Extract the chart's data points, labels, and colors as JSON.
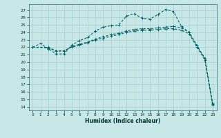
{
  "xlabel": "Humidex (Indice chaleur)",
  "bg_color": "#c8e8e8",
  "grid_color": "#a8cccc",
  "line_color": "#006666",
  "x_ticks": [
    0,
    1,
    2,
    3,
    4,
    5,
    6,
    7,
    8,
    9,
    10,
    11,
    12,
    13,
    14,
    15,
    16,
    17,
    18,
    19,
    20,
    21,
    22,
    23
  ],
  "xlim": [
    -0.5,
    23.5
  ],
  "ylim": [
    13.5,
    27.8
  ],
  "y_ticks": [
    14,
    15,
    16,
    17,
    18,
    19,
    20,
    21,
    22,
    23,
    24,
    25,
    26,
    27
  ],
  "line1_x": [
    0,
    1,
    2,
    3,
    4,
    5,
    6,
    7,
    8,
    9,
    10,
    11,
    12,
    13,
    14,
    15,
    16,
    17,
    18,
    19,
    20,
    21,
    22,
    23
  ],
  "line1_y": [
    22.0,
    22.5,
    21.8,
    21.1,
    21.1,
    22.3,
    22.9,
    23.3,
    24.2,
    24.7,
    24.9,
    25.0,
    26.2,
    26.5,
    25.9,
    25.8,
    26.4,
    27.1,
    26.8,
    24.8,
    24.0,
    22.2,
    20.5,
    14.3
  ],
  "line2_x": [
    0,
    2,
    3,
    4,
    5,
    6,
    7,
    8,
    9,
    10,
    11,
    12,
    13,
    14,
    15,
    16,
    17,
    18,
    19,
    20,
    21,
    22,
    23
  ],
  "line2_y": [
    22.0,
    22.0,
    21.5,
    21.5,
    22.1,
    22.4,
    22.7,
    23.1,
    23.4,
    23.7,
    23.9,
    24.2,
    24.4,
    24.5,
    24.5,
    24.6,
    24.7,
    24.8,
    24.6,
    24.0,
    22.2,
    20.5,
    14.4
  ],
  "line3_x": [
    0,
    2,
    3,
    4,
    5,
    6,
    7,
    8,
    9,
    10,
    11,
    12,
    13,
    14,
    15,
    16,
    17,
    18,
    19,
    20,
    21,
    22,
    23
  ],
  "line3_y": [
    22.0,
    21.9,
    21.5,
    21.5,
    22.0,
    22.3,
    22.6,
    23.0,
    23.2,
    23.5,
    23.7,
    24.0,
    24.2,
    24.3,
    24.3,
    24.4,
    24.5,
    24.5,
    24.3,
    23.8,
    22.0,
    20.3,
    14.2
  ]
}
